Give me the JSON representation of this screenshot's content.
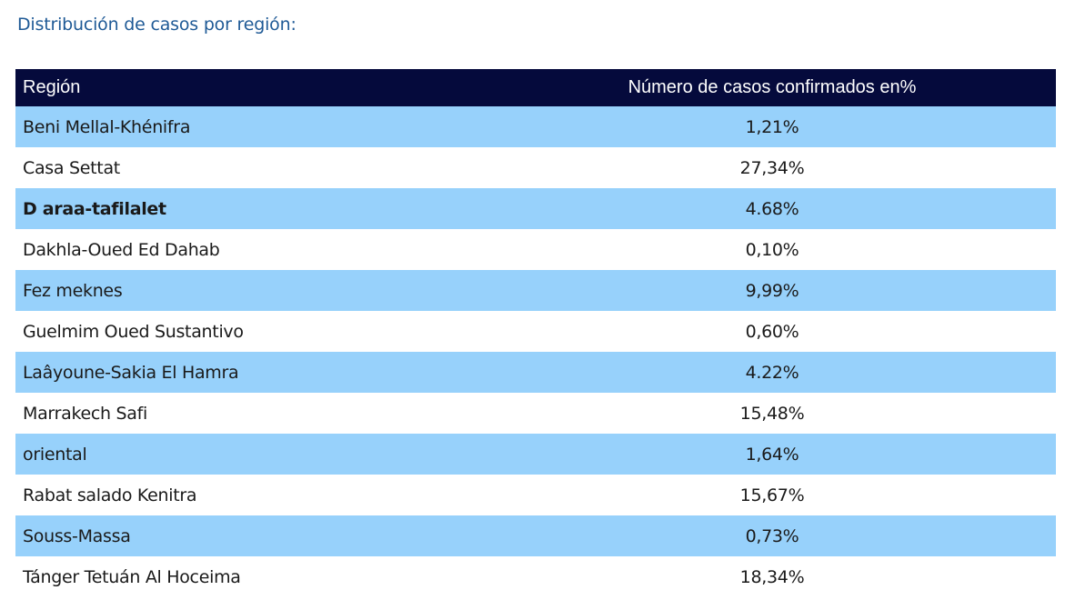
{
  "caption": "Distribución de casos por región:",
  "table": {
    "headers": {
      "region": "Región",
      "value": "Número de casos confirmados en%"
    },
    "rows": [
      {
        "region": "Beni Mellal-Khénifra",
        "value": "1,21%"
      },
      {
        "region": "Casa Settat",
        "value": "27,34%"
      },
      {
        "region": "D araa-tafilalet",
        "value": "4.68%"
      },
      {
        "region": "Dakhla-Oued Ed Dahab",
        "value": "0,10%"
      },
      {
        "region": "Fez meknes",
        "value": "9,99%"
      },
      {
        "region": "Guelmim Oued Sustantivo",
        "value": "0,60%"
      },
      {
        "region": "Laâyoune-Sakia El Hamra",
        "value": "4.22%"
      },
      {
        "region": "Marrakech Safi",
        "value": "15,48%"
      },
      {
        "region": "oriental",
        "value": "1,64%"
      },
      {
        "region": "Rabat salado Kenitra",
        "value": "15,67%"
      },
      {
        "region": "Souss-Massa",
        "value": "0,73%"
      },
      {
        "region": "Tánger Tetuán Al Hoceima",
        "value": "18,34%"
      }
    ]
  },
  "colors": {
    "header_bg": "#050a3c",
    "stripe_bg": "#97d1fb",
    "caption_text": "#1f5a96"
  }
}
